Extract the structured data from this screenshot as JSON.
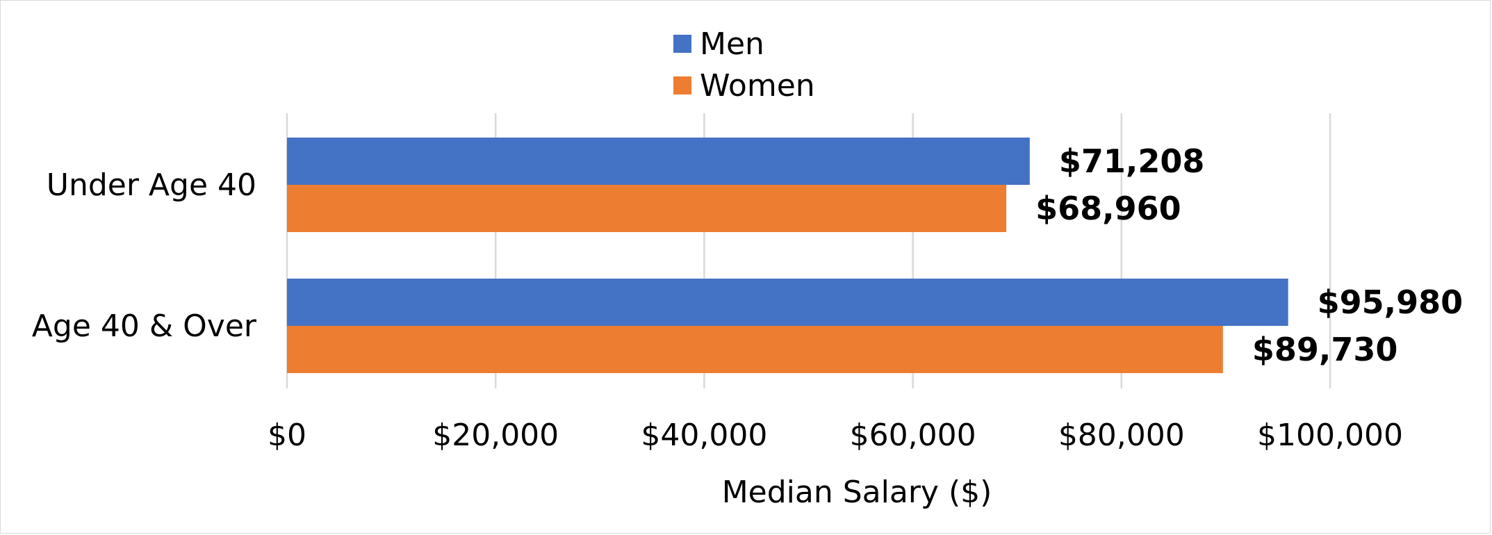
{
  "chart_data": {
    "type": "bar",
    "orientation": "horizontal",
    "categories": [
      "Under Age 40",
      "Age 40 & Over"
    ],
    "series": [
      {
        "name": "Men",
        "color": "#4472c4",
        "values": [
          71208,
          95980
        ],
        "labels": [
          "$71,208",
          "$95,980"
        ]
      },
      {
        "name": "Women",
        "color": "#ed7d31",
        "values": [
          68960,
          89730
        ],
        "labels": [
          "$68,960",
          "$89,730"
        ]
      }
    ],
    "xlabel": "Median Salary ($)",
    "ylabel": "",
    "xlim": [
      0,
      100000
    ],
    "xticks": [
      0,
      20000,
      40000,
      60000,
      80000,
      100000
    ],
    "xtick_labels": [
      "$0",
      "$20,000",
      "$40,000",
      "$60,000",
      "$80,000",
      "$100,000"
    ],
    "grid": "vertical",
    "legend_position": "top"
  }
}
